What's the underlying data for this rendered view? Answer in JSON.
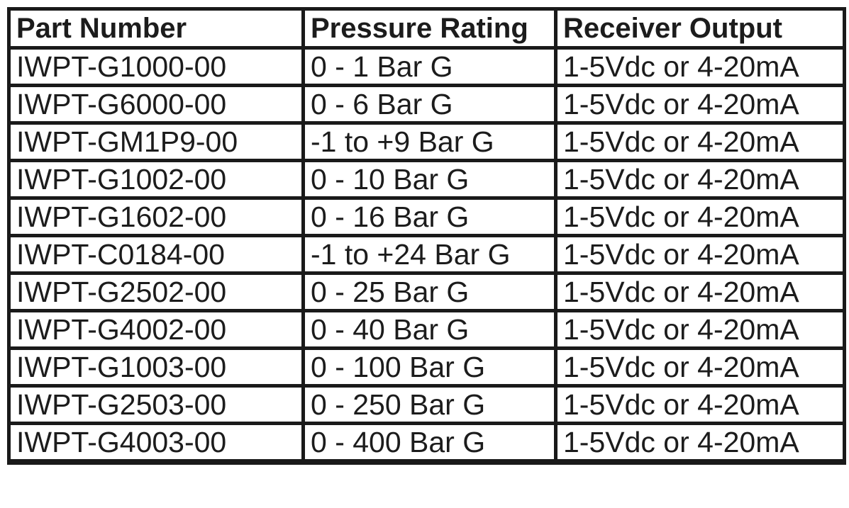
{
  "table": {
    "columns": [
      "Part Number",
      "Pressure Rating",
      "Receiver Output"
    ],
    "rows": [
      [
        "IWPT-G1000-00",
        "0 - 1 Bar G",
        "1-5Vdc or 4-20mA"
      ],
      [
        "IWPT-G6000-00",
        "0 - 6 Bar G",
        "1-5Vdc or 4-20mA"
      ],
      [
        "IWPT-GM1P9-00",
        "-1 to +9 Bar G",
        "1-5Vdc or 4-20mA"
      ],
      [
        "IWPT-G1002-00",
        "0 - 10 Bar G",
        "1-5Vdc or 4-20mA"
      ],
      [
        "IWPT-G1602-00",
        "0 - 16 Bar G",
        "1-5Vdc or 4-20mA"
      ],
      [
        "IWPT-C0184-00",
        "-1 to +24 Bar G",
        "1-5Vdc or 4-20mA"
      ],
      [
        "IWPT-G2502-00",
        "0 - 25 Bar G",
        "1-5Vdc or 4-20mA"
      ],
      [
        "IWPT-G4002-00",
        "0 - 40 Bar G",
        "1-5Vdc or 4-20mA"
      ],
      [
        "IWPT-G1003-00",
        "0 - 100 Bar G",
        "1-5Vdc or 4-20mA"
      ],
      [
        "IWPT-G2503-00",
        "0 - 250 Bar G",
        "1-5Vdc or 4-20mA"
      ],
      [
        "IWPT-G4003-00",
        "0 - 400 Bar G",
        "1-5Vdc or 4-20mA"
      ]
    ]
  }
}
